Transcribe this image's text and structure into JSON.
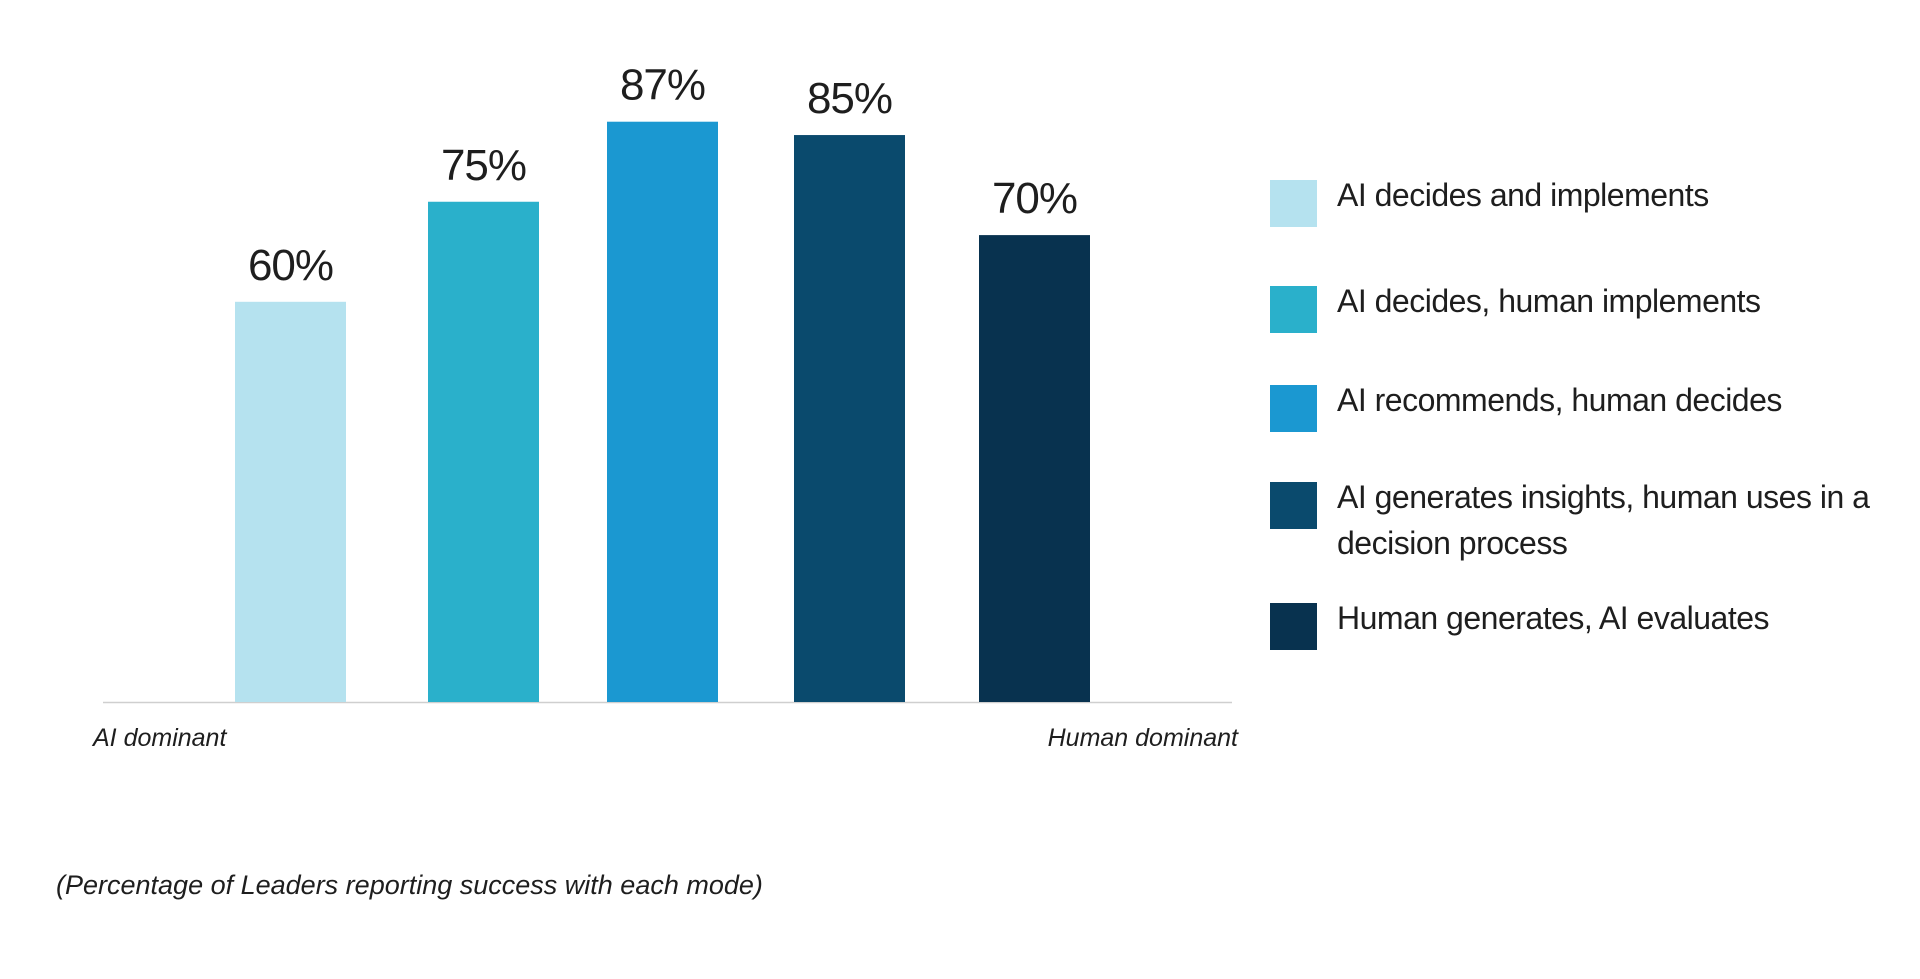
{
  "chart_data": {
    "type": "bar",
    "categories": [
      "AI decides and implements",
      "AI decides, human implements",
      "AI recommends, human decides",
      "AI generates insights, human uses in a decision process",
      "Human generates, AI evaluates"
    ],
    "values": [
      60,
      75,
      87,
      85,
      70
    ],
    "value_labels": [
      "60%",
      "75%",
      "87%",
      "85%",
      "70%"
    ],
    "colors": [
      "#b5e2ef",
      "#2ab0cb",
      "#1b98d1",
      "#0a4a6d",
      "#08324f"
    ],
    "axis_color": "#cfcfcf",
    "ylim": [
      0,
      100
    ],
    "grid": false,
    "legend_position": "right",
    "x_axis_ends": {
      "left": "AI dominant",
      "right": "Human dominant"
    },
    "legend": [
      {
        "label": "AI decides and implements",
        "color": "#b5e2ef"
      },
      {
        "label": "AI decides, human implements",
        "color": "#2ab0cb"
      },
      {
        "label": "AI recommends, human decides",
        "color": "#1b98d1"
      },
      {
        "label": "AI generates insights, human uses in a decision process",
        "color": "#0a4a6d"
      },
      {
        "label": "Human generates, AI evaluates",
        "color": "#08324f"
      }
    ],
    "footnote": "(Percentage of Leaders reporting success with each mode)"
  }
}
